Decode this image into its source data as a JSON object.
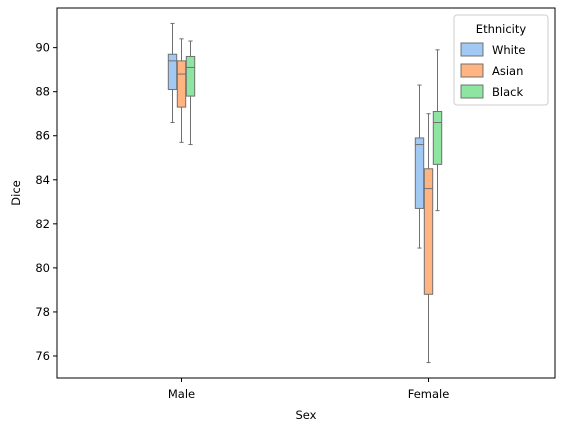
{
  "chart_data": {
    "type": "box",
    "xlabel": "Sex",
    "ylabel": "Dice",
    "categories": [
      "Male",
      "Female"
    ],
    "ylim": [
      75.0,
      91.8
    ],
    "yticks": [
      76,
      78,
      80,
      82,
      84,
      86,
      88,
      90
    ],
    "grid": false,
    "legend": {
      "title": "Ethnicity",
      "placement": "top-right"
    },
    "series": [
      {
        "name": "White",
        "color": "#a1c9f4",
        "boxes": [
          {
            "category": "Male",
            "whisker_low": 86.6,
            "q1": 88.1,
            "median": 89.4,
            "q3": 89.7,
            "whisker_high": 91.1
          },
          {
            "category": "Female",
            "whisker_low": 80.9,
            "q1": 82.7,
            "median": 85.6,
            "q3": 85.9,
            "whisker_high": 88.3
          }
        ]
      },
      {
        "name": "Asian",
        "color": "#ffb482",
        "boxes": [
          {
            "category": "Male",
            "whisker_low": 85.7,
            "q1": 87.3,
            "median": 88.8,
            "q3": 89.4,
            "whisker_high": 90.4
          },
          {
            "category": "Female",
            "whisker_low": 75.7,
            "q1": 78.8,
            "median": 83.6,
            "q3": 84.5,
            "whisker_high": 87.0
          }
        ]
      },
      {
        "name": "Black",
        "color": "#8de5a1",
        "boxes": [
          {
            "category": "Male",
            "whisker_low": 85.6,
            "q1": 87.8,
            "median": 89.1,
            "q3": 89.6,
            "whisker_high": 90.3
          },
          {
            "category": "Female",
            "whisker_low": 82.6,
            "q1": 84.7,
            "median": 86.6,
            "q3": 87.1,
            "whisker_high": 89.9
          }
        ]
      }
    ]
  }
}
